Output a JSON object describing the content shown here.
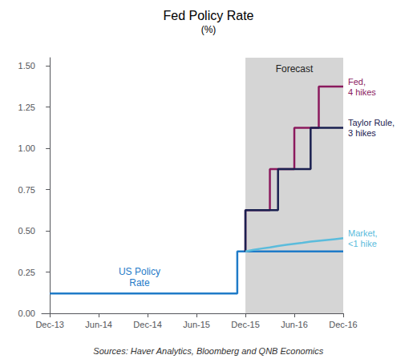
{
  "chart_data": {
    "type": "line",
    "title": "Fed Policy Rate",
    "subtitle": "(%)",
    "source": "Sources: Haver Analytics, Bloomberg and QNB Economics",
    "forecast": {
      "start": 24,
      "end": 36,
      "label": "Forecast",
      "color": "#d5d5d5"
    },
    "xlim": [
      -1,
      36
    ],
    "xticks": [
      {
        "value": 0,
        "label": "Dec-13"
      },
      {
        "value": 6,
        "label": "Jun-14"
      },
      {
        "value": 12,
        "label": "Dec-14"
      },
      {
        "value": 18,
        "label": "Jun-15"
      },
      {
        "value": 24,
        "label": "Dec-15"
      },
      {
        "value": 30,
        "label": "Jun-16"
      },
      {
        "value": 36,
        "label": "Dec-16"
      }
    ],
    "ylim": [
      0.0,
      1.55
    ],
    "yticks": [
      {
        "value": 0.0,
        "label": "0.00"
      },
      0.25,
      {
        "value": 0.5,
        "label": "0.50"
      },
      0.75,
      {
        "value": 1.0,
        "label": "1.00"
      },
      1.25,
      {
        "value": 1.5,
        "label": "1.50"
      }
    ],
    "grid": false,
    "series": [
      {
        "name": "US Policy\nRate",
        "color": "#1f7bc8",
        "x": [
          0,
          22,
          22,
          23,
          23,
          24,
          24,
          36
        ],
        "values": [
          0.12,
          0.12,
          0.12,
          0.12,
          0.375,
          0.375,
          0.375,
          0.375
        ]
      },
      {
        "name": "Fed,\n4 hikes",
        "color": "#8b1a5e",
        "x": [
          24,
          24,
          27,
          27,
          30,
          30,
          33,
          33,
          36,
          36
        ],
        "values": [
          0.375,
          0.625,
          0.625,
          0.875,
          0.875,
          1.125,
          1.125,
          1.375,
          1.375,
          1.375
        ]
      },
      {
        "name": "Taylor Rule,\n3 hikes",
        "color": "#1a2050",
        "x": [
          24,
          24,
          28,
          28,
          32,
          32,
          36,
          36
        ],
        "values": [
          0.375,
          0.625,
          0.625,
          0.875,
          0.875,
          1.125,
          1.125,
          1.125
        ]
      },
      {
        "name": "Market,\n<1 hike",
        "color": "#5bbcdc",
        "x": [
          24,
          25,
          26,
          27,
          28,
          29,
          30,
          31,
          32,
          33,
          34,
          35,
          36
        ],
        "values": [
          0.375,
          0.385,
          0.393,
          0.4,
          0.408,
          0.415,
          0.422,
          0.428,
          0.435,
          0.44,
          0.445,
          0.45,
          0.455
        ]
      }
    ]
  }
}
